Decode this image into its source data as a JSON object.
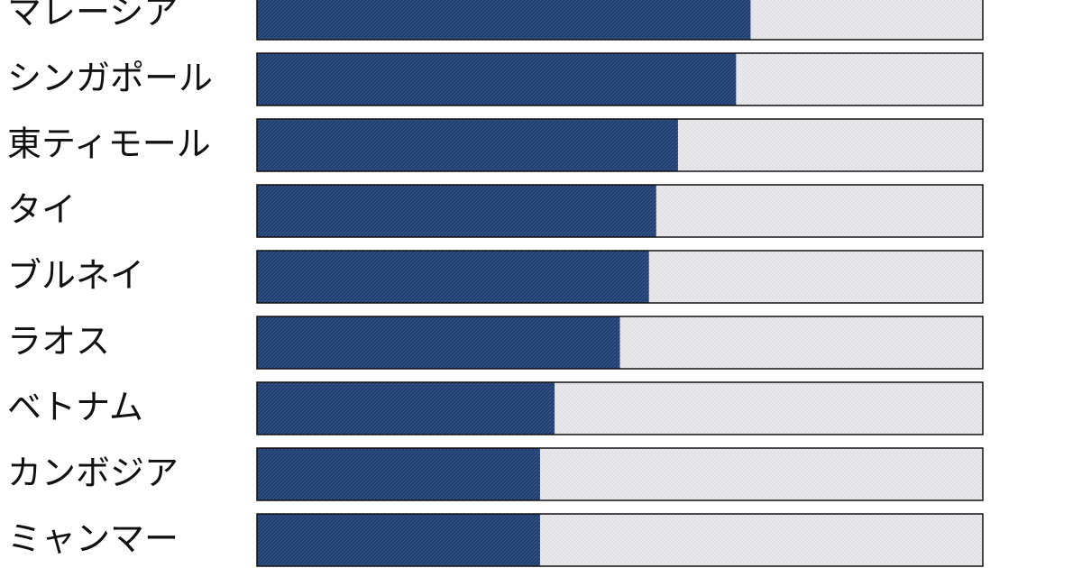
{
  "chart_data": {
    "type": "bar",
    "orientation": "horizontal",
    "categories": [
      "マレーシア",
      "シンガポール",
      "東ティモール",
      "タイ",
      "ブルネイ",
      "ラオス",
      "ベトナム",
      "カンボジア",
      "ミャンマー"
    ],
    "values": [
      68,
      66,
      58,
      55,
      54,
      50,
      41,
      39,
      39
    ],
    "color": "#1f3e72",
    "track_color": "#e9e9ee",
    "xlim": [
      0,
      100
    ]
  }
}
